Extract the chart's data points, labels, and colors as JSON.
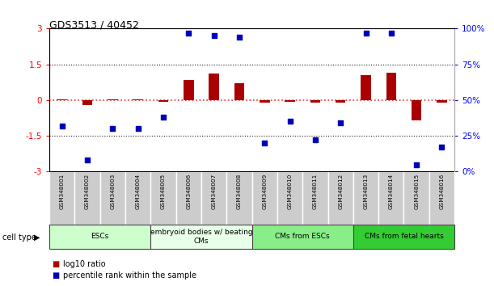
{
  "title": "GDS3513 / 40452",
  "samples": [
    "GSM348001",
    "GSM348002",
    "GSM348003",
    "GSM348004",
    "GSM348005",
    "GSM348006",
    "GSM348007",
    "GSM348008",
    "GSM348009",
    "GSM348010",
    "GSM348011",
    "GSM348012",
    "GSM348013",
    "GSM348014",
    "GSM348015",
    "GSM348016"
  ],
  "log10_ratio": [
    0.02,
    -0.22,
    0.03,
    0.04,
    -0.08,
    0.85,
    1.1,
    0.7,
    -0.12,
    -0.08,
    -0.12,
    -0.1,
    1.05,
    1.15,
    -0.85,
    -0.12
  ],
  "percentile_rank": [
    32,
    8,
    30,
    30,
    38,
    97,
    95,
    94,
    20,
    35,
    22,
    34,
    97,
    97,
    5,
    17
  ],
  "cell_types": [
    {
      "label": "ESCs",
      "start": 0,
      "end": 4,
      "color": "#ccffcc"
    },
    {
      "label": "embryoid bodies w/ beating\nCMs",
      "start": 4,
      "end": 8,
      "color": "#e8ffe8"
    },
    {
      "label": "CMs from ESCs",
      "start": 8,
      "end": 12,
      "color": "#88ee88"
    },
    {
      "label": "CMs from fetal hearts",
      "start": 12,
      "end": 16,
      "color": "#33cc33"
    }
  ],
  "ylim_left": [
    -3,
    3
  ],
  "ylim_right": [
    0,
    100
  ],
  "yticks_left": [
    -3,
    -1.5,
    0,
    1.5,
    3
  ],
  "yticks_right": [
    0,
    25,
    50,
    75,
    100
  ],
  "ytick_labels_left": [
    "-3",
    "-1.5",
    "0",
    "1.5",
    "3"
  ],
  "ytick_labels_right": [
    "0%",
    "25%",
    "50%",
    "75%",
    "100%"
  ],
  "bar_color": "#aa0000",
  "dot_color": "#0000bb",
  "ref_line_color": "#ee3333",
  "dotted_color": "#222222",
  "legend_red": "log10 ratio",
  "legend_blue": "percentile rank within the sample"
}
